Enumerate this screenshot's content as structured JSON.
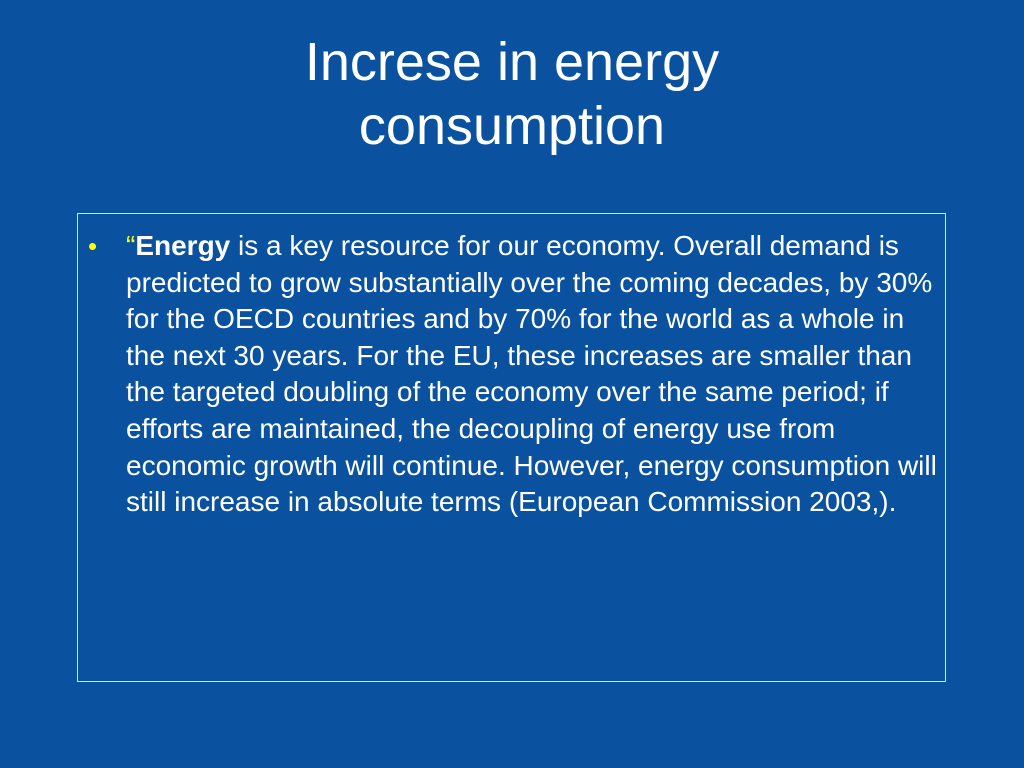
{
  "slide": {
    "title_line1": "Increse in energy",
    "title_line2": "consumption"
  },
  "bullets": [
    {
      "marker": "•",
      "open_quote": "“",
      "bold_term": "Energy",
      "text": " is a key resource for our economy. Overall demand is predicted to grow substantially over the coming decades, by 30% for the OECD countries and by 70% for the world as a whole in the next 30 years. For the EU, these increases are smaller than the targeted doubling of the economy over the same period; if efforts are maintained, the decoupling of energy use from economic growth will continue. However, energy consumption will still increase in absolute terms (European Commission 2003,)."
    }
  ],
  "colors": {
    "background": "#0a52a0",
    "text": "#ffffff",
    "bullet_accent": "#ffff00",
    "box_border": "#d8e2ee"
  }
}
